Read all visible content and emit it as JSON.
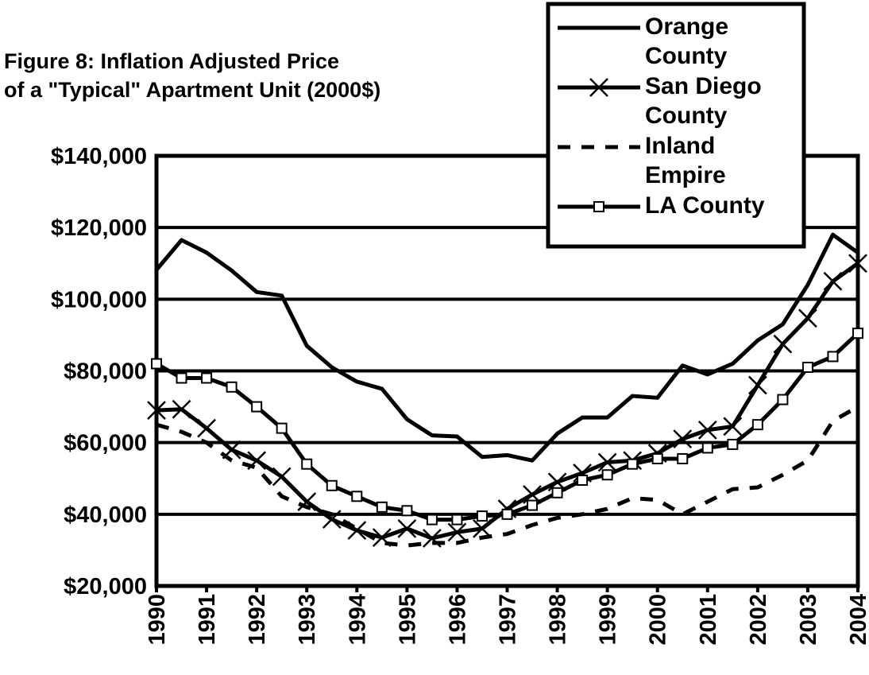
{
  "chart_data": {
    "type": "line",
    "title": [
      "Figure 8: Inflation Adjusted Price",
      "of a \"Typical\" Apartment Unit (2000$)"
    ],
    "x": [
      1990,
      1990.5,
      1991,
      1991.5,
      1992,
      1992.5,
      1993,
      1993.5,
      1994,
      1994.5,
      1995,
      1995.5,
      1996,
      1996.5,
      1997,
      1997.5,
      1998,
      1998.5,
      1999,
      1999.5,
      2000,
      2000.5,
      2001,
      2001.5,
      2002,
      2002.5,
      2003,
      2003.5,
      2004
    ],
    "xlim": [
      1990,
      2004
    ],
    "xticks": [
      1990,
      1991,
      1992,
      1993,
      1994,
      1995,
      1996,
      1997,
      1998,
      1999,
      2000,
      2001,
      2002,
      2003,
      2004
    ],
    "ylim": [
      20000,
      140000
    ],
    "yticks": [
      {
        "value": 20000,
        "label": "$20,000"
      },
      {
        "value": 40000,
        "label": "$40,000"
      },
      {
        "value": 60000,
        "label": "$60,000"
      },
      {
        "value": 80000,
        "label": "$80,000"
      },
      {
        "value": 100000,
        "label": "$100,000"
      },
      {
        "value": 120000,
        "label": "$120,000"
      },
      {
        "value": 140000,
        "label": "$140,000"
      }
    ],
    "grid": true,
    "legend": "top-right",
    "series": [
      {
        "name": "Orange County",
        "color": "#000000",
        "marker": "none",
        "dash": false,
        "values": [
          108200,
          116500,
          113000,
          108000,
          102000,
          101000,
          87000,
          81000,
          77000,
          75000,
          66500,
          62000,
          61700,
          56000,
          56500,
          55000,
          62500,
          67000,
          67000,
          73000,
          72500,
          81500,
          79000,
          82000,
          88500,
          93000,
          104000,
          118000,
          113000
        ]
      },
      {
        "name": "San Diego County",
        "color": "#000000",
        "marker": "x",
        "dash": false,
        "values": [
          69000,
          69300,
          64000,
          58000,
          55000,
          50500,
          43500,
          38600,
          35500,
          33500,
          36000,
          33300,
          35000,
          36000,
          41500,
          45500,
          49000,
          51500,
          54500,
          55000,
          57000,
          61000,
          63500,
          64500,
          76000,
          87500,
          94700,
          105000,
          110000
        ]
      },
      {
        "name": "Inland Empire",
        "color": "#000000",
        "marker": "none",
        "dash": true,
        "values": [
          65000,
          63000,
          60000,
          55000,
          53000,
          45000,
          42000,
          40000,
          36000,
          32000,
          31300,
          32000,
          32000,
          33500,
          34500,
          37000,
          39000,
          40000,
          41500,
          44500,
          44000,
          40000,
          43500,
          47000,
          47500,
          51000,
          55000,
          66000,
          70000
        ]
      },
      {
        "name": "LA County",
        "color": "#000000",
        "marker": "square",
        "dash": false,
        "values": [
          82000,
          78000,
          78000,
          75500,
          70000,
          64000,
          54000,
          48000,
          45000,
          42000,
          41000,
          38500,
          38500,
          39500,
          40000,
          42500,
          46000,
          49500,
          51000,
          54000,
          55500,
          55500,
          58500,
          59500,
          65000,
          72000,
          81000,
          84000,
          90500
        ]
      }
    ]
  }
}
